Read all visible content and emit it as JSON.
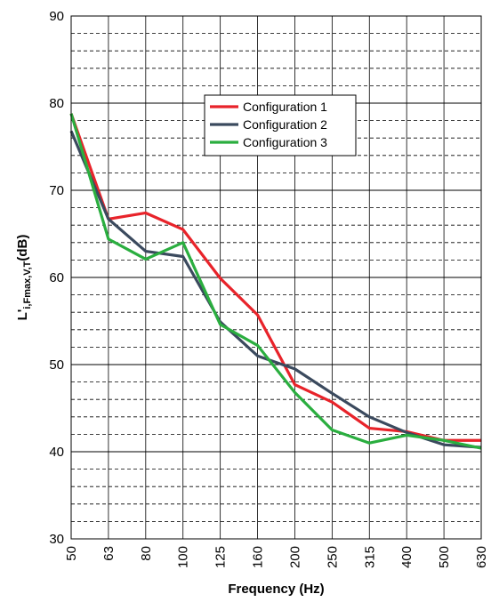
{
  "chart_data": {
    "type": "line",
    "categories": [
      "50",
      "63",
      "80",
      "100",
      "125",
      "160",
      "200",
      "250",
      "315",
      "400",
      "500",
      "630"
    ],
    "series": [
      {
        "name": "Configuration 1",
        "color": "#e8232a",
        "values": [
          78.8,
          66.7,
          67.4,
          65.5,
          59.9,
          55.7,
          47.7,
          45.7,
          42.7,
          42.3,
          41.3,
          41.3
        ]
      },
      {
        "name": "Configuration 2",
        "color": "#3b4a5e",
        "values": [
          76.8,
          66.7,
          63.0,
          62.4,
          54.9,
          51.0,
          49.5,
          46.7,
          44.0,
          42.2,
          40.8,
          40.5
        ]
      },
      {
        "name": "Configuration 3",
        "color": "#2aae3f",
        "values": [
          78.8,
          64.4,
          62.1,
          64.0,
          54.6,
          52.2,
          46.8,
          42.5,
          41.0,
          41.9,
          41.3,
          40.4
        ]
      }
    ],
    "xlabel": "Frequency (Hz)",
    "ylabel": {
      "main": "L'",
      "sub": "i,Fmax,V,T",
      "unit": "(dB)"
    },
    "ylim": [
      30,
      90
    ],
    "yticks": [
      30,
      40,
      50,
      60,
      70,
      80,
      90
    ],
    "grid": {
      "minor_step": 2,
      "style": "dashed",
      "vertical": "solid"
    },
    "legend": "upper-center"
  }
}
